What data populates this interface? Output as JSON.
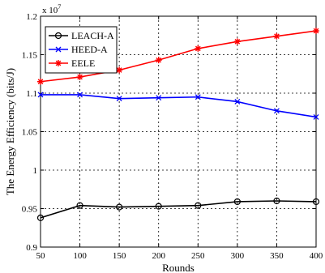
{
  "chart_data": {
    "type": "line",
    "xlabel": "Rounds",
    "ylabel": "The Energy Efficiency (bits/J)",
    "y_multiplier_label": "x 10",
    "y_multiplier_exponent": "7",
    "x": [
      50,
      100,
      150,
      200,
      250,
      300,
      350,
      400
    ],
    "xlim": [
      50,
      400
    ],
    "ylim": [
      0.9,
      1.2
    ],
    "xticks": [
      "50",
      "100",
      "150",
      "200",
      "250",
      "300",
      "350",
      "400"
    ],
    "yticks": [
      "0.9",
      "0.95",
      "1",
      "1.05",
      "1.1",
      "1.15",
      "1.2"
    ],
    "ytick_values": [
      0.9,
      0.95,
      1.0,
      1.05,
      1.1,
      1.15,
      1.2
    ],
    "grid": true,
    "legend_position": "top-left",
    "series": [
      {
        "name": "LEACH-A",
        "color": "#000000",
        "marker": "circle",
        "values": [
          0.938,
          0.954,
          0.952,
          0.953,
          0.954,
          0.959,
          0.96,
          0.959
        ]
      },
      {
        "name": "HEED-A",
        "color": "#0000ff",
        "marker": "x",
        "values": [
          1.098,
          1.098,
          1.093,
          1.094,
          1.095,
          1.089,
          1.077,
          1.069
        ]
      },
      {
        "name": "EELE",
        "color": "#ff0000",
        "marker": "star",
        "values": [
          1.115,
          1.121,
          1.13,
          1.143,
          1.158,
          1.167,
          1.174,
          1.181
        ]
      }
    ]
  }
}
